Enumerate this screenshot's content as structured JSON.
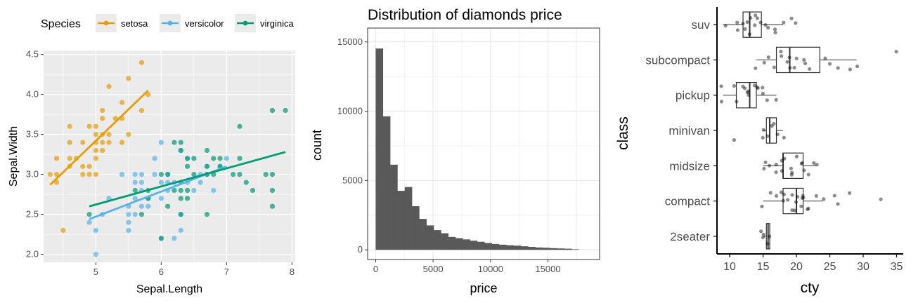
{
  "chart_data": [
    {
      "type": "scatter",
      "title": "",
      "xlabel": "Sepal.Length",
      "ylabel": "Sepal.Width",
      "xlim": [
        4.2,
        8.05
      ],
      "ylim": [
        1.9,
        4.55
      ],
      "xticks": [
        "5",
        "6",
        "7",
        "8"
      ],
      "yticks": [
        "2.0",
        "2.5",
        "3.0",
        "3.5",
        "4.0",
        "4.5"
      ],
      "grid": true,
      "legend": {
        "title": "Species",
        "position": "top",
        "entries": [
          "setosa",
          "versicolor",
          "virginica"
        ]
      },
      "series": [
        {
          "name": "setosa",
          "color": "#E69F00",
          "fit": [
            [
              4.3,
              2.87
            ],
            [
              5.8,
              4.05
            ]
          ],
          "points": [
            [
              4.3,
              3.0
            ],
            [
              4.4,
              2.9
            ],
            [
              4.4,
              3.0
            ],
            [
              4.4,
              3.2
            ],
            [
              4.5,
              2.3
            ],
            [
              4.6,
              3.1
            ],
            [
              4.6,
              3.2
            ],
            [
              4.6,
              3.4
            ],
            [
              4.6,
              3.6
            ],
            [
              4.7,
              3.2
            ],
            [
              4.8,
              3.0
            ],
            [
              4.8,
              3.1
            ],
            [
              4.8,
              3.4
            ],
            [
              4.9,
              3.0
            ],
            [
              4.9,
              3.1
            ],
            [
              4.9,
              3.6
            ],
            [
              5.0,
              3.0
            ],
            [
              5.0,
              3.2
            ],
            [
              5.0,
              3.3
            ],
            [
              5.0,
              3.4
            ],
            [
              5.0,
              3.5
            ],
            [
              5.0,
              3.6
            ],
            [
              5.1,
              3.3
            ],
            [
              5.1,
              3.4
            ],
            [
              5.1,
              3.5
            ],
            [
              5.1,
              3.7
            ],
            [
              5.1,
              3.8
            ],
            [
              5.2,
              3.4
            ],
            [
              5.2,
              3.5
            ],
            [
              5.2,
              4.1
            ],
            [
              5.3,
              3.7
            ],
            [
              5.4,
              3.4
            ],
            [
              5.4,
              3.7
            ],
            [
              5.4,
              3.9
            ],
            [
              5.5,
              3.5
            ],
            [
              5.5,
              4.2
            ],
            [
              5.7,
              3.8
            ],
            [
              5.7,
              4.4
            ],
            [
              5.8,
              4.0
            ]
          ]
        },
        {
          "name": "versicolor",
          "color": "#56B4E9",
          "fit": [
            [
              4.9,
              2.44
            ],
            [
              7.0,
              3.1
            ]
          ],
          "points": [
            [
              4.9,
              2.4
            ],
            [
              5.0,
              2.0
            ],
            [
              5.0,
              2.3
            ],
            [
              5.1,
              2.5
            ],
            [
              5.2,
              2.7
            ],
            [
              5.4,
              3.0
            ],
            [
              5.5,
              2.3
            ],
            [
              5.5,
              2.4
            ],
            [
              5.5,
              2.5
            ],
            [
              5.5,
              2.6
            ],
            [
              5.6,
              2.5
            ],
            [
              5.6,
              2.7
            ],
            [
              5.6,
              2.9
            ],
            [
              5.6,
              3.0
            ],
            [
              5.7,
              2.6
            ],
            [
              5.7,
              2.8
            ],
            [
              5.7,
              2.9
            ],
            [
              5.7,
              3.0
            ],
            [
              5.8,
              2.6
            ],
            [
              5.8,
              2.7
            ],
            [
              5.9,
              3.0
            ],
            [
              5.9,
              3.2
            ],
            [
              6.0,
              2.2
            ],
            [
              6.0,
              2.7
            ],
            [
              6.0,
              2.9
            ],
            [
              6.0,
              3.4
            ],
            [
              6.1,
              2.8
            ],
            [
              6.1,
              2.9
            ],
            [
              6.1,
              3.0
            ],
            [
              6.2,
              2.2
            ],
            [
              6.2,
              2.9
            ],
            [
              6.3,
              2.3
            ],
            [
              6.3,
              2.5
            ],
            [
              6.3,
              3.3
            ],
            [
              6.4,
              2.9
            ],
            [
              6.4,
              3.2
            ],
            [
              6.5,
              2.8
            ],
            [
              6.6,
              2.9
            ],
            [
              6.6,
              3.0
            ],
            [
              6.7,
              3.0
            ],
            [
              6.7,
              3.1
            ],
            [
              6.8,
              2.8
            ],
            [
              6.9,
              3.1
            ],
            [
              7.0,
              3.2
            ]
          ]
        },
        {
          "name": "virginica",
          "color": "#009E73",
          "fit": [
            [
              4.9,
              2.6
            ],
            [
              7.9,
              3.28
            ]
          ],
          "points": [
            [
              4.9,
              2.5
            ],
            [
              5.6,
              2.8
            ],
            [
              5.7,
              2.5
            ],
            [
              5.8,
              2.7
            ],
            [
              5.8,
              2.8
            ],
            [
              6.0,
              2.2
            ],
            [
              6.0,
              3.0
            ],
            [
              6.1,
              2.6
            ],
            [
              6.1,
              3.0
            ],
            [
              6.2,
              2.8
            ],
            [
              6.2,
              3.4
            ],
            [
              6.3,
              2.5
            ],
            [
              6.3,
              2.7
            ],
            [
              6.3,
              2.8
            ],
            [
              6.3,
              2.9
            ],
            [
              6.3,
              3.3
            ],
            [
              6.3,
              3.4
            ],
            [
              6.4,
              2.7
            ],
            [
              6.4,
              2.8
            ],
            [
              6.4,
              3.1
            ],
            [
              6.4,
              3.2
            ],
            [
              6.5,
              3.0
            ],
            [
              6.5,
              3.2
            ],
            [
              6.7,
              2.5
            ],
            [
              6.7,
              3.0
            ],
            [
              6.7,
              3.1
            ],
            [
              6.7,
              3.3
            ],
            [
              6.8,
              3.0
            ],
            [
              6.8,
              3.2
            ],
            [
              6.9,
              3.1
            ],
            [
              6.9,
              3.2
            ],
            [
              7.1,
              3.0
            ],
            [
              7.2,
              3.0
            ],
            [
              7.2,
              3.2
            ],
            [
              7.2,
              3.6
            ],
            [
              7.3,
              2.9
            ],
            [
              7.4,
              2.8
            ],
            [
              7.6,
              3.0
            ],
            [
              7.7,
              2.6
            ],
            [
              7.7,
              2.8
            ],
            [
              7.7,
              3.0
            ],
            [
              7.7,
              3.8
            ],
            [
              7.9,
              3.8
            ]
          ]
        }
      ]
    },
    {
      "type": "bar",
      "title": "Distribution of diamonds price",
      "xlabel": "price",
      "ylabel": "count",
      "xlim": [
        -700,
        19500
      ],
      "ylim": [
        -700,
        16000
      ],
      "xticks": [
        "0",
        "5000",
        "10000",
        "15000"
      ],
      "yticks": [
        "0",
        "5000",
        "10000",
        "15000"
      ],
      "grid": true,
      "bin_width": 632,
      "x_start": 0,
      "values": [
        14524,
        9631,
        6141,
        4255,
        4532,
        3145,
        2230,
        1760,
        1420,
        1195,
        930,
        840,
        750,
        660,
        580,
        490,
        420,
        370,
        330,
        300,
        255,
        210,
        170,
        150,
        120,
        100,
        80,
        40
      ]
    },
    {
      "type": "box",
      "title": "",
      "xlabel": "cty",
      "ylabel": "class",
      "xlim": [
        8.1,
        36.0
      ],
      "xticks": [
        "10",
        "15",
        "20",
        "25",
        "30",
        "35"
      ],
      "categories": [
        "2seater",
        "compact",
        "midsize",
        "minivan",
        "pickup",
        "subcompact",
        "suv"
      ],
      "grid": false,
      "boxes": [
        {
          "class": "2seater",
          "min": 15,
          "q1": 15.5,
          "median": 15.75,
          "q3": 16,
          "max": 16,
          "outliers": []
        },
        {
          "class": "compact",
          "min": 15,
          "q1": 18,
          "median": 20,
          "q3": 21,
          "max": 24,
          "outliers": [
            26,
            26,
            28,
            33
          ]
        },
        {
          "class": "midsize",
          "min": 15,
          "q1": 18,
          "median": 18,
          "q3": 21,
          "max": 23,
          "outliers": []
        },
        {
          "class": "minivan",
          "min": 15,
          "q1": 15.5,
          "median": 16,
          "q3": 17,
          "max": 18,
          "outliers": [
            11
          ]
        },
        {
          "class": "pickup",
          "min": 9,
          "q1": 11,
          "median": 13,
          "q3": 14,
          "max": 17,
          "outliers": []
        },
        {
          "class": "subcompact",
          "min": 14,
          "q1": 17,
          "median": 19,
          "q3": 23.5,
          "max": 29,
          "outliers": [
            35
          ]
        },
        {
          "class": "suv",
          "min": 9,
          "q1": 12,
          "median": 13,
          "q3": 14.75,
          "max": 18,
          "outliers": [
            19,
            20
          ]
        }
      ],
      "jitter_points": {
        "2seater": [
          15,
          15,
          16,
          16,
          15
        ],
        "compact": [
          15,
          16,
          17,
          18,
          18,
          18,
          19,
          19,
          19,
          20,
          20,
          20,
          21,
          21,
          21,
          21,
          22,
          22,
          23,
          24,
          26,
          26,
          28,
          33
        ],
        "midsize": [
          15,
          15,
          16,
          17,
          17,
          18,
          18,
          18,
          19,
          19,
          19,
          20,
          21,
          21,
          21,
          22,
          23,
          23
        ],
        "minivan": [
          11,
          15,
          15,
          16,
          16,
          17,
          17,
          18
        ],
        "pickup": [
          9,
          9,
          11,
          11,
          12,
          12,
          13,
          13,
          13,
          14,
          14,
          14,
          15,
          15,
          16,
          17
        ],
        "subcompact": [
          14,
          15,
          16,
          17,
          18,
          18,
          19,
          19,
          19,
          20,
          20,
          21,
          21,
          22,
          24,
          25,
          26,
          28,
          29,
          35
        ],
        "suv": [
          9,
          11,
          11,
          12,
          12,
          13,
          13,
          13,
          14,
          14,
          14,
          15,
          15,
          16,
          17,
          17,
          18,
          19,
          20
        ]
      }
    }
  ]
}
